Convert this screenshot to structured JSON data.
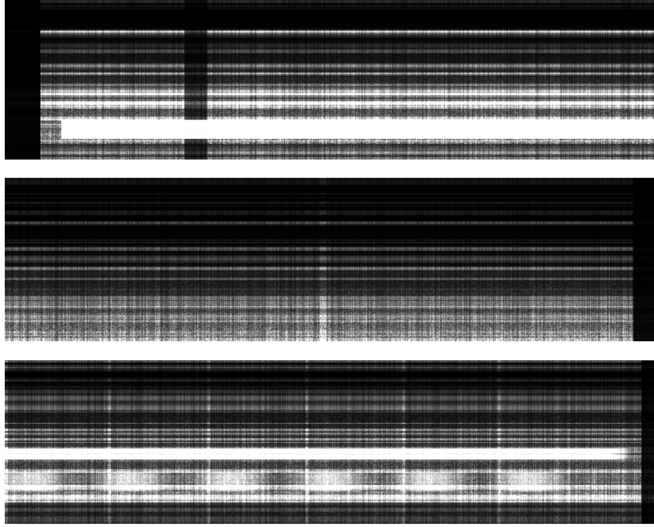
{
  "figure": {
    "panels": [
      {
        "id": "spectrogram-1",
        "colormap": "grayscale",
        "background": "#000000",
        "texture": "dense-harmonic"
      },
      {
        "id": "spectrogram-2",
        "colormap": "grayscale",
        "background": "#000000",
        "texture": "sparse-harmonic"
      },
      {
        "id": "spectrogram-3",
        "colormap": "grayscale",
        "background": "#000000",
        "texture": "banded-segments"
      }
    ],
    "background": "#ffffff"
  }
}
